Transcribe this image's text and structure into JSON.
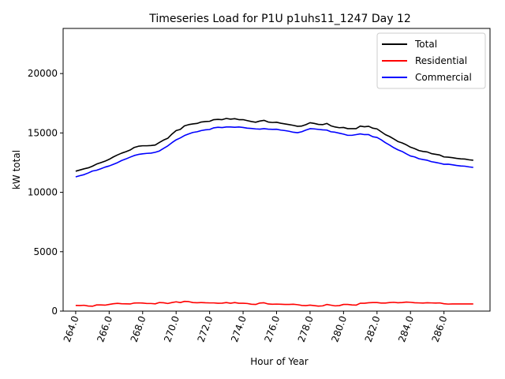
{
  "chart_data": {
    "type": "line",
    "title": "Timeseries Load for P1U p1uhs11_1247  Day 12",
    "xlabel": "Hour of Year",
    "ylabel": "kW total",
    "xlim": [
      263.25,
      288.75
    ],
    "ylim": [
      0,
      23800
    ],
    "xticks": [
      "264.0",
      "266.0",
      "268.0",
      "270.0",
      "272.0",
      "274.0",
      "276.0",
      "278.0",
      "280.0",
      "282.0",
      "284.0",
      "286.0"
    ],
    "yticks": [
      "0",
      "5000",
      "10000",
      "15000",
      "20000"
    ],
    "legend_position": "top-right",
    "x": [
      264.0,
      264.25,
      264.5,
      264.75,
      265.0,
      265.25,
      265.5,
      265.75,
      266.0,
      266.25,
      266.5,
      266.75,
      267.0,
      267.25,
      267.5,
      267.75,
      268.0,
      268.25,
      268.5,
      268.75,
      269.0,
      269.25,
      269.5,
      269.75,
      270.0,
      270.25,
      270.5,
      270.75,
      271.0,
      271.25,
      271.5,
      271.75,
      272.0,
      272.25,
      272.5,
      272.75,
      273.0,
      273.25,
      273.5,
      273.75,
      274.0,
      274.25,
      274.5,
      274.75,
      275.0,
      275.25,
      275.5,
      275.75,
      276.0,
      276.25,
      276.5,
      276.75,
      277.0,
      277.25,
      277.5,
      277.75,
      278.0,
      278.25,
      278.5,
      278.75,
      279.0,
      279.25,
      279.5,
      279.75,
      280.0,
      280.25,
      280.5,
      280.75,
      281.0,
      281.25,
      281.5,
      281.75,
      282.0,
      282.25,
      282.5,
      282.75,
      283.0,
      283.25,
      283.5,
      283.75,
      284.0,
      284.25,
      284.5,
      284.75,
      285.0,
      285.25,
      285.5,
      285.75,
      286.0,
      286.25,
      286.5,
      286.75,
      287.0,
      287.25,
      287.5,
      287.75
    ],
    "series": [
      {
        "name": "Total",
        "color": "#000000",
        "values": [
          11780,
          11880,
          11980,
          12060,
          12200,
          12380,
          12500,
          12620,
          12780,
          12980,
          13150,
          13300,
          13420,
          13560,
          13780,
          13880,
          13920,
          13920,
          13940,
          13980,
          14200,
          14400,
          14550,
          14900,
          15200,
          15300,
          15600,
          15700,
          15760,
          15800,
          15920,
          15960,
          15980,
          16120,
          16140,
          16120,
          16220,
          16160,
          16200,
          16120,
          16120,
          16040,
          15960,
          15900,
          16000,
          16060,
          15920,
          15880,
          15900,
          15820,
          15760,
          15700,
          15640,
          15560,
          15580,
          15700,
          15860,
          15800,
          15720,
          15700,
          15800,
          15600,
          15500,
          15440,
          15460,
          15360,
          15360,
          15360,
          15580,
          15520,
          15560,
          15400,
          15340,
          15100,
          14860,
          14700,
          14500,
          14280,
          14160,
          14000,
          13800,
          13680,
          13520,
          13440,
          13400,
          13260,
          13200,
          13140,
          12980,
          12960,
          12920,
          12860,
          12820,
          12800,
          12740,
          12700
        ]
      },
      {
        "name": "Residential",
        "color": "#ff0000",
        "values": [
          480,
          470,
          490,
          430,
          410,
          520,
          520,
          500,
          560,
          620,
          650,
          620,
          610,
          600,
          680,
          690,
          680,
          640,
          640,
          610,
          720,
          700,
          640,
          720,
          780,
          720,
          820,
          800,
          720,
          700,
          720,
          700,
          690,
          690,
          660,
          670,
          720,
          660,
          720,
          660,
          660,
          640,
          580,
          560,
          680,
          700,
          600,
          580,
          590,
          580,
          560,
          560,
          580,
          540,
          480,
          460,
          500,
          460,
          420,
          440,
          560,
          500,
          440,
          460,
          560,
          560,
          520,
          500,
          660,
          660,
          700,
          720,
          720,
          680,
          680,
          720,
          740,
          700,
          720,
          760,
          740,
          700,
          690,
          680,
          700,
          690,
          680,
          690,
          620,
          590,
          600,
          600,
          600,
          600,
          600,
          600
        ]
      },
      {
        "name": "Commercial",
        "color": "#0000ff",
        "values": [
          11300,
          11400,
          11490,
          11630,
          11790,
          11860,
          11980,
          12120,
          12220,
          12360,
          12500,
          12680,
          12810,
          12960,
          13100,
          13190,
          13240,
          13280,
          13300,
          13370,
          13480,
          13700,
          13910,
          14180,
          14420,
          14580,
          14780,
          14920,
          15040,
          15100,
          15200,
          15260,
          15290,
          15430,
          15480,
          15450,
          15500,
          15500,
          15480,
          15500,
          15460,
          15400,
          15380,
          15340,
          15320,
          15360,
          15320,
          15300,
          15310,
          15240,
          15200,
          15140,
          15060,
          15020,
          15100,
          15240,
          15360,
          15340,
          15300,
          15260,
          15240,
          15100,
          15060,
          14980,
          14900,
          14800,
          14800,
          14860,
          14920,
          14860,
          14860,
          14680,
          14620,
          14420,
          14180,
          13980,
          13760,
          13580,
          13440,
          13240,
          13060,
          12980,
          12830,
          12760,
          12700,
          12580,
          12520,
          12450,
          12360,
          12370,
          12320,
          12260,
          12220,
          12200,
          12140,
          12100
        ]
      }
    ]
  }
}
